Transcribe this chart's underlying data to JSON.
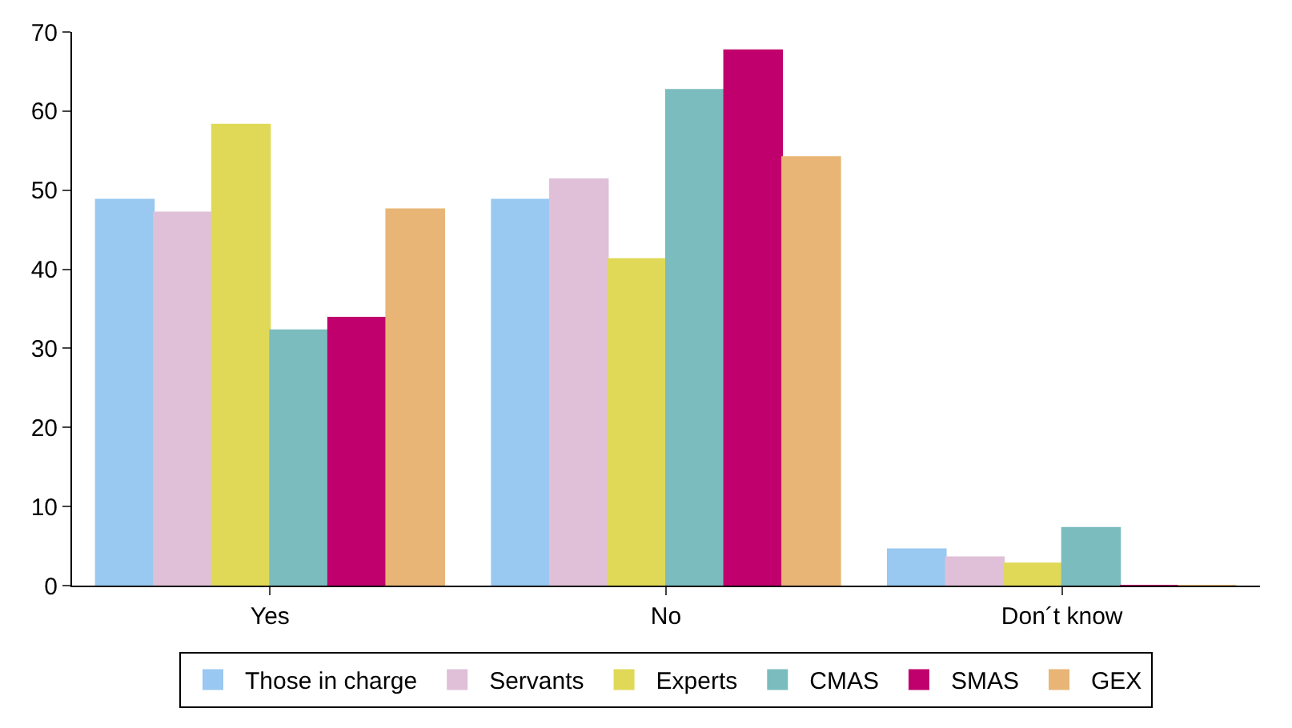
{
  "chart_data": {
    "type": "bar",
    "categories": [
      "Yes",
      "No",
      "Don´t know"
    ],
    "series": [
      {
        "name": "Those in charge",
        "color": "#99c8f0",
        "values": [
          48.8,
          48.8,
          4.6
        ]
      },
      {
        "name": "Servants",
        "color": "#dfc0d8",
        "values": [
          47.2,
          51.4,
          3.6
        ]
      },
      {
        "name": "Experts",
        "color": "#e0d957",
        "values": [
          58.3,
          41.3,
          2.8
        ]
      },
      {
        "name": "CMAS",
        "color": "#7bbcbe",
        "values": [
          32.3,
          62.7,
          7.3
        ]
      },
      {
        "name": "SMAS",
        "color": "#c0006c",
        "values": [
          33.9,
          67.7,
          0
        ]
      },
      {
        "name": "GEX",
        "color": "#e8b576",
        "values": [
          47.6,
          54.2,
          0
        ]
      }
    ],
    "ylim": [
      0,
      70
    ],
    "yticks": [
      0,
      10,
      20,
      30,
      40,
      50,
      60,
      70
    ],
    "grid": false,
    "legend": "bottom"
  }
}
